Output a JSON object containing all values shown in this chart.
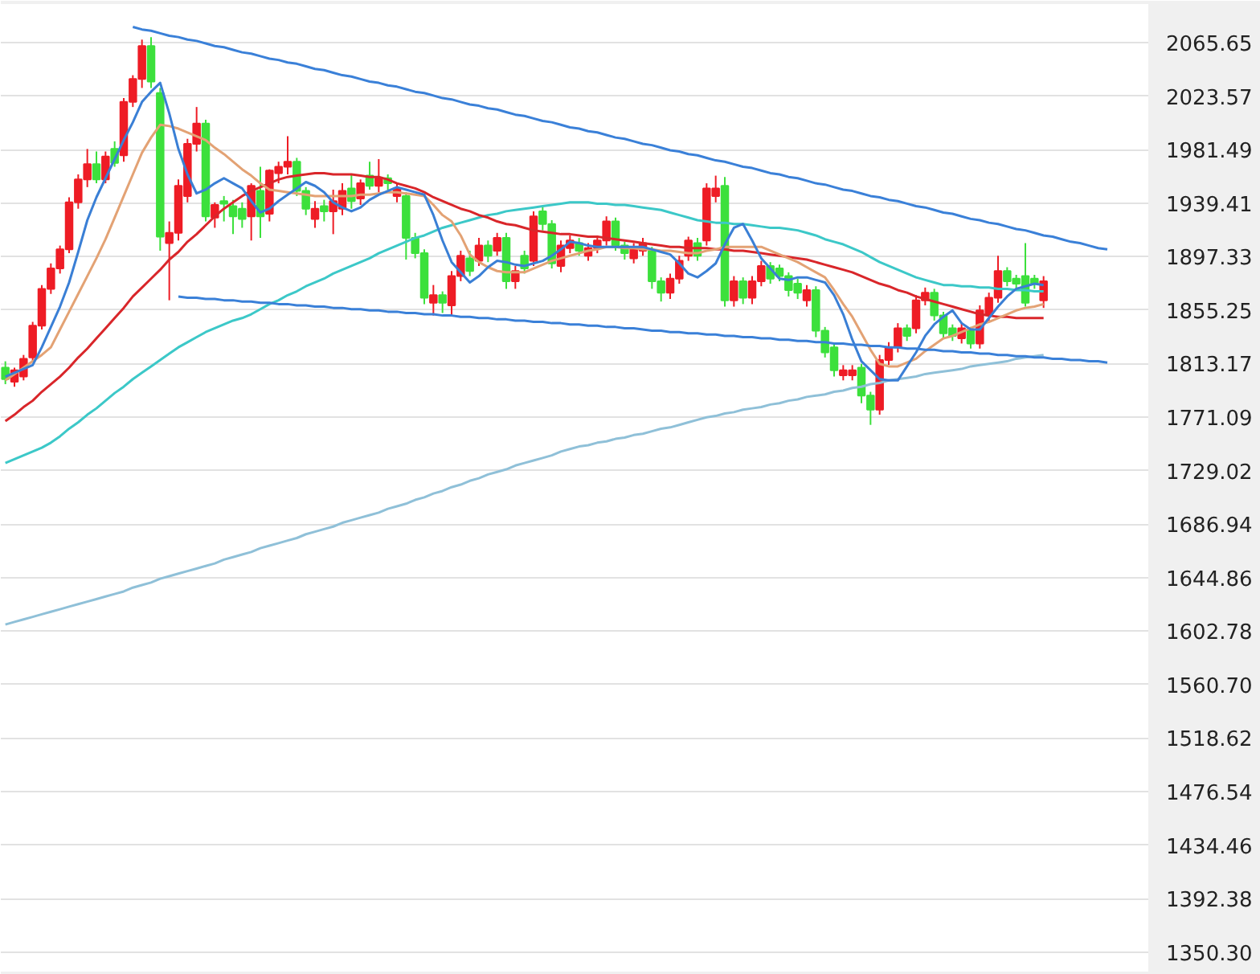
{
  "chart_data": {
    "type": "candlestick",
    "categories": [
      null,
      null,
      null,
      null,
      null,
      null,
      null,
      null,
      null,
      null,
      null,
      null,
      null,
      null,
      null,
      null,
      null,
      null,
      null,
      null,
      null,
      null,
      null,
      null,
      null,
      null,
      null,
      null,
      null,
      null,
      null,
      null,
      null,
      null,
      null,
      null,
      null,
      null,
      null,
      null,
      null,
      null,
      null,
      null,
      null,
      null,
      null,
      null,
      null,
      null,
      null,
      null,
      null,
      null,
      null,
      null,
      null,
      null,
      null,
      null,
      null,
      null,
      null,
      null,
      null,
      null,
      null,
      null,
      null,
      null,
      null,
      null,
      null,
      null,
      null,
      null,
      null,
      null,
      null,
      null,
      null,
      null,
      null,
      null,
      null,
      null,
      null,
      null,
      null,
      null,
      null,
      null,
      null,
      null,
      null,
      null,
      null,
      null,
      null,
      null,
      null,
      null,
      null,
      null,
      null,
      null,
      null,
      null,
      null,
      null,
      null,
      null,
      null,
      null,
      null,
      null,
      null,
      null,
      null,
      null,
      null,
      null,
      null,
      null,
      null,
      null
    ],
    "ohlc": [
      [
        1810,
        1815,
        1797,
        1801
      ],
      [
        1799,
        1810,
        1795,
        1808
      ],
      [
        1803,
        1820,
        1800,
        1817
      ],
      [
        1818,
        1846,
        1815,
        1843
      ],
      [
        1843,
        1875,
        1840,
        1872
      ],
      [
        1872,
        1892,
        1868,
        1888
      ],
      [
        1888,
        1906,
        1884,
        1903
      ],
      [
        1903,
        1944,
        1900,
        1940
      ],
      [
        1940,
        1962,
        1935,
        1958
      ],
      [
        1958,
        1982,
        1952,
        1970
      ],
      [
        1970,
        1980,
        1955,
        1958
      ],
      [
        1958,
        1980,
        1955,
        1976
      ],
      [
        1982,
        1988,
        1968,
        1971
      ],
      [
        1977,
        2022,
        1972,
        2019
      ],
      [
        2019,
        2040,
        2015,
        2037
      ],
      [
        2037,
        2068,
        2030,
        2063
      ],
      [
        2063,
        2070,
        2030,
        2035
      ],
      [
        2026,
        2030,
        1902,
        1913
      ],
      [
        1908,
        1925,
        1863,
        1916
      ],
      [
        1916,
        1958,
        1910,
        1953
      ],
      [
        1945,
        1990,
        1940,
        1986
      ],
      [
        1986,
        2015,
        1980,
        2002
      ],
      [
        2002,
        2005,
        1925,
        1929
      ],
      [
        1928,
        1940,
        1920,
        1938
      ],
      [
        1941,
        1945,
        1925,
        1939
      ],
      [
        1937,
        1942,
        1915,
        1929
      ],
      [
        1935,
        1940,
        1920,
        1927
      ],
      [
        1929,
        1955,
        1910,
        1953
      ],
      [
        1949,
        1968,
        1912,
        1929
      ],
      [
        1931,
        1966,
        1925,
        1965
      ],
      [
        1963,
        1972,
        1955,
        1968
      ],
      [
        1968,
        1992,
        1962,
        1972
      ],
      [
        1972,
        1975,
        1945,
        1949
      ],
      [
        1949,
        1952,
        1930,
        1935
      ],
      [
        1927,
        1941,
        1920,
        1935
      ],
      [
        1937,
        1942,
        1925,
        1933
      ],
      [
        1933,
        1950,
        1915,
        1941
      ],
      [
        1935,
        1955,
        1930,
        1949
      ],
      [
        1951,
        1962,
        1935,
        1941
      ],
      [
        1943,
        1958,
        1938,
        1955
      ],
      [
        1961,
        1972,
        1950,
        1953
      ],
      [
        1953,
        1974,
        1948,
        1959
      ],
      [
        1959,
        1962,
        1950,
        1955
      ],
      [
        1945,
        1955,
        1940,
        1951
      ],
      [
        1945,
        1948,
        1895,
        1912
      ],
      [
        1912,
        1916,
        1896,
        1900
      ],
      [
        1900,
        1903,
        1860,
        1865
      ],
      [
        1861,
        1875,
        1851,
        1867
      ],
      [
        1867,
        1870,
        1853,
        1861
      ],
      [
        1859,
        1886,
        1851,
        1882
      ],
      [
        1882,
        1902,
        1878,
        1898
      ],
      [
        1896,
        1902,
        1882,
        1886
      ],
      [
        1894,
        1912,
        1890,
        1906
      ],
      [
        1906,
        1910,
        1893,
        1898
      ],
      [
        1902,
        1916,
        1898,
        1912
      ],
      [
        1912,
        1916,
        1872,
        1878
      ],
      [
        1878,
        1890,
        1872,
        1886
      ],
      [
        1898,
        1902,
        1884,
        1888
      ],
      [
        1894,
        1933,
        1890,
        1929
      ],
      [
        1933,
        1937,
        1918,
        1923
      ],
      [
        1923,
        1926,
        1888,
        1892
      ],
      [
        1890,
        1910,
        1885,
        1906
      ],
      [
        1904,
        1914,
        1900,
        1910
      ],
      [
        1908,
        1912,
        1898,
        1902
      ],
      [
        1898,
        1908,
        1894,
        1904
      ],
      [
        1904,
        1914,
        1900,
        1910
      ],
      [
        1910,
        1929,
        1906,
        1925
      ],
      [
        1925,
        1928,
        1902,
        1906
      ],
      [
        1906,
        1909,
        1895,
        1900
      ],
      [
        1896,
        1908,
        1892,
        1904
      ],
      [
        1902,
        1912,
        1898,
        1908
      ],
      [
        1902,
        1905,
        1872,
        1878
      ],
      [
        1878,
        1881,
        1862,
        1869
      ],
      [
        1869,
        1884,
        1864,
        1880
      ],
      [
        1880,
        1898,
        1876,
        1894
      ],
      [
        1898,
        1913,
        1894,
        1910
      ],
      [
        1908,
        1912,
        1894,
        1898
      ],
      [
        1910,
        1955,
        1906,
        1951
      ],
      [
        1945,
        1961,
        1940,
        1951
      ],
      [
        1953,
        1960,
        1858,
        1863
      ],
      [
        1863,
        1882,
        1858,
        1878
      ],
      [
        1878,
        1881,
        1860,
        1865
      ],
      [
        1865,
        1882,
        1860,
        1878
      ],
      [
        1878,
        1894,
        1874,
        1890
      ],
      [
        1890,
        1893,
        1876,
        1880
      ],
      [
        1888,
        1891,
        1878,
        1882
      ],
      [
        1882,
        1885,
        1866,
        1871
      ],
      [
        1876,
        1880,
        1864,
        1869
      ],
      [
        1863,
        1875,
        1858,
        1871
      ],
      [
        1871,
        1874,
        1834,
        1839
      ],
      [
        1839,
        1842,
        1818,
        1822
      ],
      [
        1826,
        1829,
        1803,
        1808
      ],
      [
        1804,
        1812,
        1800,
        1808
      ],
      [
        1804,
        1812,
        1800,
        1808
      ],
      [
        1810,
        1813,
        1782,
        1788
      ],
      [
        1788,
        1791,
        1765,
        1777
      ],
      [
        1777,
        1820,
        1773,
        1816
      ],
      [
        1816,
        1830,
        1812,
        1826
      ],
      [
        1826,
        1845,
        1822,
        1841
      ],
      [
        1841,
        1844,
        1831,
        1835
      ],
      [
        1841,
        1867,
        1837,
        1863
      ],
      [
        1863,
        1873,
        1859,
        1869
      ],
      [
        1869,
        1872,
        1847,
        1851
      ],
      [
        1851,
        1854,
        1833,
        1837
      ],
      [
        1841,
        1844,
        1831,
        1835
      ],
      [
        1833,
        1845,
        1829,
        1841
      ],
      [
        1839,
        1842,
        1825,
        1829
      ],
      [
        1829,
        1859,
        1825,
        1855
      ],
      [
        1851,
        1869,
        1847,
        1865
      ],
      [
        1865,
        1898,
        1861,
        1886
      ],
      [
        1886,
        1889,
        1874,
        1878
      ],
      [
        1880,
        1883,
        1872,
        1876
      ],
      [
        1882,
        1908,
        1858,
        1861
      ],
      [
        1880,
        1883,
        1872,
        1876
      ],
      [
        1863,
        1882,
        1857,
        1878
      ],
      null,
      null,
      null,
      null,
      null,
      null,
      null,
      null,
      null,
      null,
      null
    ],
    "series": [
      {
        "type": "line",
        "color": "#8fc0d8",
        "values": [
          1608,
          1610,
          1612,
          1614,
          1616,
          1618,
          1620,
          1622,
          1624,
          1626,
          1628,
          1630,
          1632,
          1634,
          1637,
          1639,
          1641,
          1644,
          1646,
          1648,
          1650,
          1652,
          1654,
          1656,
          1659,
          1661,
          1663,
          1665,
          1668,
          1670,
          1672,
          1674,
          1676,
          1679,
          1681,
          1683,
          1685,
          1688,
          1690,
          1692,
          1694,
          1696,
          1699,
          1701,
          1703,
          1706,
          1708,
          1711,
          1713,
          1716,
          1718,
          1721,
          1723,
          1726,
          1728,
          1730,
          1733,
          1735,
          1737,
          1739,
          1741,
          1744,
          1746,
          1748,
          1749,
          1751,
          1752,
          1754,
          1755,
          1757,
          1758,
          1760,
          1762,
          1763,
          1765,
          1767,
          1769,
          1771,
          1772,
          1774,
          1775,
          1777,
          1778,
          1779,
          1781,
          1782,
          1784,
          1785,
          1787,
          1788,
          1789,
          1791,
          1792,
          1794,
          1795,
          1797,
          1798,
          1800,
          1801,
          1802,
          1803,
          1805,
          1806,
          1807,
          1808,
          1809,
          1811,
          1812,
          1813,
          1814,
          1815,
          1817,
          1818,
          1819,
          1820,
          null,
          null,
          null,
          null,
          null,
          null,
          null,
          null,
          null,
          null,
          null
        ]
      },
      {
        "type": "line",
        "color": "#3cc8c8",
        "values": [
          1735,
          1738,
          1741,
          1744,
          1747,
          1751,
          1756,
          1762,
          1767,
          1773,
          1778,
          1784,
          1790,
          1795,
          1801,
          1806,
          1811,
          1816,
          1821,
          1826,
          1830,
          1834,
          1838,
          1841,
          1844,
          1847,
          1849,
          1852,
          1856,
          1860,
          1863,
          1867,
          1870,
          1874,
          1877,
          1880,
          1884,
          1887,
          1890,
          1893,
          1896,
          1900,
          1903,
          1906,
          1909,
          1912,
          1914,
          1917,
          1920,
          1922,
          1924,
          1926,
          1928,
          1930,
          1931,
          1933,
          1934,
          1935,
          1936,
          1937,
          1938,
          1939,
          1940,
          1940,
          1940,
          1939,
          1939,
          1938,
          1938,
          1937,
          1936,
          1935,
          1934,
          1932,
          1930,
          1928,
          1926,
          1925,
          1924,
          1924,
          1923,
          1923,
          1922,
          1921,
          1920,
          1920,
          1919,
          1918,
          1916,
          1914,
          1911,
          1909,
          1907,
          1904,
          1901,
          1897,
          1893,
          1890,
          1887,
          1884,
          1881,
          1879,
          1877,
          1875,
          1875,
          1874,
          1874,
          1873,
          1873,
          1872,
          1872,
          1871,
          1871,
          1870,
          1870,
          null,
          null,
          null,
          null,
          null,
          null,
          null,
          null,
          null,
          null,
          null
        ]
      },
      {
        "type": "line",
        "color": "#d9262a",
        "values": [
          1768,
          1773,
          1779,
          1784,
          1791,
          1797,
          1803,
          1810,
          1818,
          1825,
          1833,
          1841,
          1849,
          1857,
          1866,
          1873,
          1880,
          1887,
          1895,
          1901,
          1909,
          1915,
          1922,
          1929,
          1935,
          1940,
          1945,
          1949,
          1952,
          1955,
          1958,
          1960,
          1961,
          1962,
          1963,
          1963,
          1962,
          1962,
          1962,
          1961,
          1960,
          1960,
          1958,
          1955,
          1953,
          1951,
          1948,
          1944,
          1941,
          1938,
          1935,
          1933,
          1930,
          1928,
          1925,
          1923,
          1922,
          1920,
          1918,
          1917,
          1916,
          1915,
          1915,
          1914,
          1913,
          1913,
          1912,
          1911,
          1910,
          1909,
          1908,
          1907,
          1906,
          1905,
          1905,
          1904,
          1904,
          1904,
          1903,
          1903,
          1902,
          1902,
          1901,
          1900,
          1899,
          1898,
          1897,
          1896,
          1895,
          1893,
          1891,
          1889,
          1887,
          1885,
          1882,
          1879,
          1876,
          1874,
          1871,
          1869,
          1866,
          1864,
          1862,
          1860,
          1858,
          1856,
          1854,
          1852,
          1851,
          1850,
          1850,
          1849,
          1849,
          1849,
          1849,
          null,
          null,
          null,
          null,
          null,
          null,
          null,
          null,
          null,
          null,
          null
        ]
      },
      {
        "type": "line",
        "color": "#e3a274",
        "values": [
          1800,
          1805,
          1810,
          1815,
          1820,
          1826,
          1840,
          1854,
          1868,
          1882,
          1896,
          1911,
          1928,
          1945,
          1962,
          1979,
          1991,
          2001,
          2000,
          1998,
          1995,
          1992,
          1989,
          1983,
          1978,
          1972,
          1966,
          1961,
          1955,
          1950,
          1949,
          1948,
          1947,
          1946,
          1945,
          1945,
          1945,
          1945,
          1945,
          1946,
          1946,
          1947,
          1948,
          1948,
          1947,
          1946,
          1945,
          1938,
          1930,
          1925,
          1914,
          1899,
          1893,
          1889,
          1886,
          1885,
          1885,
          1885,
          1888,
          1891,
          1894,
          1896,
          1898,
          1900,
          1902,
          1903,
          1905,
          1905,
          1904,
          1904,
          1903,
          1903,
          1902,
          1902,
          1901,
          1900,
          1900,
          1902,
          1903,
          1905,
          1905,
          1905,
          1905,
          1905,
          1902,
          1899,
          1896,
          1893,
          1889,
          1885,
          1881,
          1871,
          1860,
          1850,
          1837,
          1824,
          1813,
          1811,
          1811,
          1814,
          1817,
          1823,
          1828,
          1833,
          1835,
          1838,
          1841,
          1844,
          1846,
          1849,
          1852,
          1855,
          1857,
          1858,
          1860,
          null,
          null,
          null,
          null,
          null,
          null,
          null,
          null,
          null,
          null,
          null
        ]
      },
      {
        "type": "line",
        "color": "#3a7fd5",
        "values": [
          1803,
          1806,
          1809,
          1812,
          1826,
          1842,
          1858,
          1877,
          1901,
          1926,
          1944,
          1959,
          1974,
          1989,
          2003,
          2019,
          2027,
          2034,
          2010,
          1982,
          1962,
          1947,
          1950,
          1955,
          1959,
          1955,
          1951,
          1941,
          1932,
          1935,
          1941,
          1946,
          1951,
          1956,
          1953,
          1948,
          1940,
          1936,
          1933,
          1936,
          1942,
          1946,
          1949,
          1952,
          1950,
          1948,
          1946,
          1930,
          1910,
          1893,
          1885,
          1877,
          1882,
          1889,
          1894,
          1893,
          1891,
          1890,
          1892,
          1894,
          1898,
          1903,
          1909,
          1908,
          1906,
          1905,
          1905,
          1905,
          1905,
          1905,
          1905,
          1903,
          1901,
          1899,
          1892,
          1884,
          1881,
          1886,
          1892,
          1907,
          1920,
          1923,
          1910,
          1896,
          1888,
          1880,
          1879,
          1881,
          1881,
          1879,
          1877,
          1867,
          1852,
          1832,
          1815,
          1808,
          1801,
          1800,
          1800,
          1811,
          1822,
          1835,
          1844,
          1850,
          1855,
          1845,
          1840,
          1840,
          1849,
          1858,
          1866,
          1872,
          1874,
          1876,
          1875,
          null,
          null,
          null,
          null,
          null,
          null,
          null,
          null,
          null,
          null,
          null
        ]
      },
      {
        "type": "line",
        "color": "#3a80d8",
        "values": [
          null,
          null,
          null,
          null,
          null,
          null,
          null,
          null,
          null,
          null,
          null,
          null,
          null,
          null,
          2078,
          2076,
          2075,
          2073,
          2071,
          2070,
          2068,
          2067,
          2065,
          2063,
          2062,
          2060,
          2058,
          2057,
          2055,
          2053,
          2052,
          2050,
          2049,
          2047,
          2045,
          2044,
          2042,
          2040,
          2039,
          2037,
          2035,
          2034,
          2032,
          2031,
          2029,
          2027,
          2026,
          2024,
          2022,
          2021,
          2019,
          2017,
          2016,
          2014,
          2013,
          2011,
          2009,
          2008,
          2006,
          2004,
          2003,
          2001,
          1999,
          1998,
          1996,
          1995,
          1993,
          1991,
          1990,
          1988,
          1986,
          1985,
          1983,
          1981,
          1980,
          1978,
          1977,
          1975,
          1973,
          1972,
          1970,
          1968,
          1967,
          1965,
          1963,
          1962,
          1960,
          1959,
          1957,
          1955,
          1954,
          1952,
          1950,
          1949,
          1947,
          1945,
          1944,
          1942,
          1941,
          1939,
          1937,
          1936,
          1934,
          1932,
          1931,
          1929,
          1927,
          1926,
          1924,
          1923,
          1921,
          1919,
          1918,
          1916,
          1914,
          1913,
          1911,
          1909,
          1908,
          1906,
          1904,
          1903,
          null,
          null,
          null,
          null
        ]
      },
      {
        "type": "line",
        "color": "#3a80d8",
        "values": [
          null,
          null,
          null,
          null,
          null,
          null,
          null,
          null,
          null,
          null,
          null,
          null,
          null,
          null,
          null,
          null,
          null,
          null,
          null,
          1866,
          1865,
          1865,
          1864,
          1864,
          1863,
          1863,
          1862,
          1862,
          1861,
          1861,
          1860,
          1860,
          1859,
          1859,
          1858,
          1858,
          1857,
          1857,
          1856,
          1856,
          1855,
          1855,
          1854,
          1854,
          1853,
          1853,
          1852,
          1852,
          1851,
          1851,
          1850,
          1850,
          1849,
          1849,
          1848,
          1848,
          1847,
          1847,
          1846,
          1846,
          1845,
          1845,
          1844,
          1844,
          1843,
          1843,
          1842,
          1842,
          1841,
          1841,
          1840,
          1839,
          1839,
          1838,
          1838,
          1837,
          1837,
          1836,
          1836,
          1835,
          1835,
          1834,
          1834,
          1833,
          1833,
          1832,
          1832,
          1831,
          1831,
          1830,
          1830,
          1829,
          1829,
          1828,
          1828,
          1827,
          1827,
          1826,
          1826,
          1825,
          1825,
          1824,
          1824,
          1823,
          1823,
          1822,
          1822,
          1821,
          1821,
          1820,
          1820,
          1819,
          1819,
          1818,
          1818,
          1817,
          1817,
          1816,
          1816,
          1815,
          1815,
          1814,
          null,
          null,
          null,
          null
        ]
      }
    ],
    "ylim": [
      1335,
      2096
    ],
    "yticks": [
      2065.65,
      2023.57,
      1981.49,
      1939.41,
      1897.33,
      1855.25,
      1813.17,
      1771.09,
      1729.02,
      1686.94,
      1644.86,
      1602.78,
      {
        "value": 1560.7,
        "label": "1560.70"
      },
      1518.62,
      1476.54,
      1434.46,
      1392.38,
      {
        "value": 1350.3,
        "label": "1350.30"
      }
    ],
    "grid": "y",
    "tick_labels": "y"
  }
}
